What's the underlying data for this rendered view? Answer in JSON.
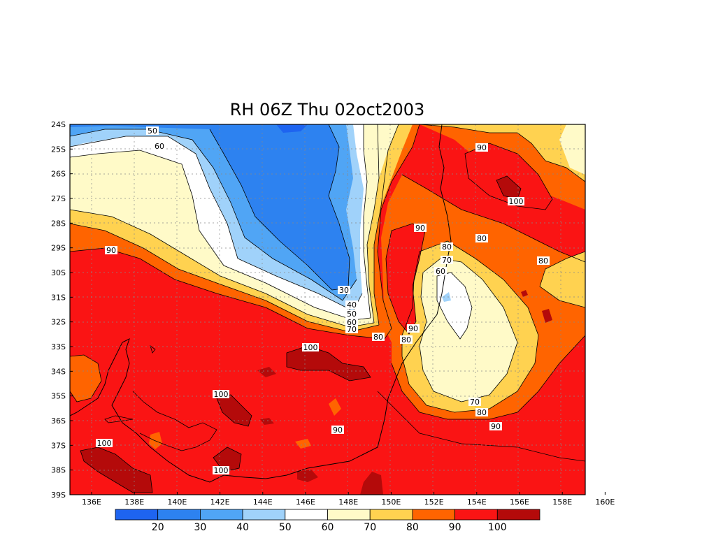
{
  "title": "RH 06Z Thu 02oct2003",
  "lon_ticks": [
    "136E",
    "138E",
    "140E",
    "142E",
    "144E",
    "146E",
    "148E",
    "150E",
    "152E",
    "154E",
    "156E",
    "158E",
    "160E"
  ],
  "lat_ticks": [
    "24S",
    "25S",
    "26S",
    "27S",
    "28S",
    "29S",
    "30S",
    "31S",
    "32S",
    "33S",
    "34S",
    "35S",
    "36S",
    "37S",
    "38S",
    "39S"
  ],
  "colorbar": {
    "colors": [
      "#1e64f0",
      "#2d82f0",
      "#50a5f5",
      "#a0d2fa",
      "#ffffff",
      "#fffac8",
      "#ffd250",
      "#ff6400",
      "#fa1414",
      "#b40a0a"
    ],
    "labels": [
      "20",
      "30",
      "40",
      "50",
      "60",
      "70",
      "80",
      "90",
      "100"
    ]
  },
  "contour_labels": [
    "50",
    "60",
    "30",
    "40",
    "50",
    "60",
    "70",
    "80",
    "90",
    "90",
    "80",
    "70",
    "60",
    "80",
    "90",
    "100",
    "80",
    "90",
    "80",
    "100",
    "100",
    "90",
    "100",
    "100",
    "80",
    "70",
    "90"
  ]
}
